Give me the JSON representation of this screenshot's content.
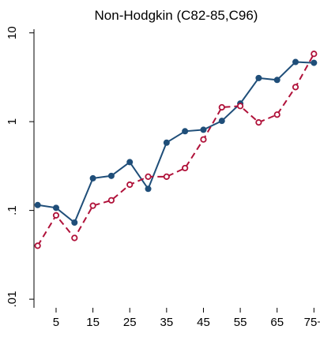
{
  "chart_data": {
    "type": "line",
    "title": "Non-Hodgkin (C82-85,C96)",
    "xlabel": "",
    "ylabel": "",
    "yscale": "log",
    "ylim": [
      0.008,
      11
    ],
    "xlim": [
      -1,
      76
    ],
    "y_ticks": [
      0.01,
      0.1,
      1,
      10
    ],
    "y_tick_labels": [
      ".01",
      ".1",
      "1",
      "10"
    ],
    "x_ticks": [
      5,
      15,
      25,
      35,
      45,
      55,
      65,
      75
    ],
    "x_tick_labels": [
      "5",
      "15",
      "25",
      "35",
      "45",
      "55",
      "65",
      "75+"
    ],
    "x": [
      0,
      5,
      10,
      15,
      20,
      25,
      30,
      35,
      40,
      45,
      50,
      55,
      60,
      65,
      70,
      75
    ],
    "series": [
      {
        "color": "#1f4e79",
        "style": "solid",
        "marker": "filled-circle",
        "values": [
          0.115,
          0.107,
          0.073,
          0.23,
          0.245,
          0.35,
          0.175,
          0.58,
          0.78,
          0.81,
          1.02,
          1.6,
          3.1,
          2.95,
          4.7,
          4.6
        ]
      },
      {
        "color": "#b0123a",
        "style": "dashed",
        "marker": "hollow-circle",
        "values": [
          0.04,
          0.088,
          0.049,
          0.113,
          0.13,
          0.195,
          0.24,
          0.24,
          0.3,
          0.63,
          1.45,
          1.5,
          0.98,
          1.2,
          2.45,
          5.8
        ]
      }
    ]
  }
}
